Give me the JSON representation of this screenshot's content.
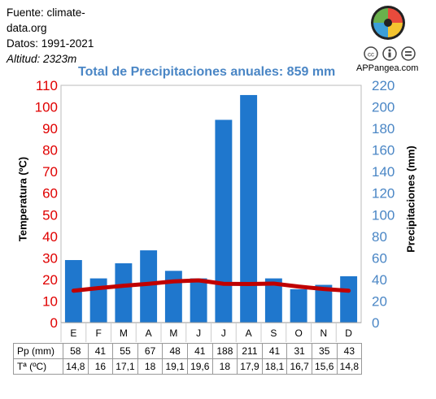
{
  "meta": {
    "source": "Fuente: climate-data.org",
    "period": "Datos: 1991-2021",
    "altitude": "Altitud: 2323m"
  },
  "brand": {
    "site": "APPangea.com",
    "license_icons": [
      "cc-icon",
      "by-icon",
      "nd-icon"
    ]
  },
  "table": {
    "pp_label": "Pp (mm)",
    "t_label": "Tª (ºC)",
    "pp": [
      "58",
      "41",
      "55",
      "67",
      "48",
      "41",
      "188",
      "211",
      "41",
      "31",
      "35",
      "43"
    ],
    "t": [
      "14,8",
      "16",
      "17,1",
      "18",
      "19,1",
      "19,6",
      "18",
      "17,9",
      "18,1",
      "16,7",
      "15,6",
      "14,8"
    ]
  },
  "colors": {
    "bars": "#1f77cd",
    "temp_line": "#c00000",
    "left_axis": "#e00000",
    "right_axis": "#4a86c5",
    "title": "#4a86c5"
  },
  "chart_data": {
    "type": "bar",
    "title": "Total de Precipitaciones anuales: 859 mm",
    "categories": [
      "E",
      "F",
      "M",
      "A",
      "M",
      "J",
      "J",
      "A",
      "S",
      "O",
      "N",
      "D"
    ],
    "series": [
      {
        "axis": "right",
        "type": "bar",
        "values": [
          58,
          41,
          55,
          67,
          48,
          41,
          188,
          211,
          41,
          31,
          35,
          43
        ]
      },
      {
        "axis": "left",
        "type": "line",
        "values": [
          14.8,
          16,
          17.1,
          18,
          19.1,
          19.6,
          18,
          17.9,
          18.1,
          16.7,
          15.6,
          14.8
        ]
      }
    ],
    "ylabel_left": "Temperatura (ºC)",
    "ylabel_right": "Precipitaciones (mm)",
    "ylim_left": [
      0,
      110
    ],
    "ylim_right": [
      0,
      220
    ],
    "yticks_left": [
      0,
      10,
      20,
      30,
      40,
      50,
      60,
      70,
      80,
      90,
      100,
      110
    ],
    "yticks_right": [
      0,
      20,
      40,
      60,
      80,
      100,
      120,
      140,
      160,
      180,
      200,
      220
    ],
    "grid": false,
    "legend": "none"
  }
}
